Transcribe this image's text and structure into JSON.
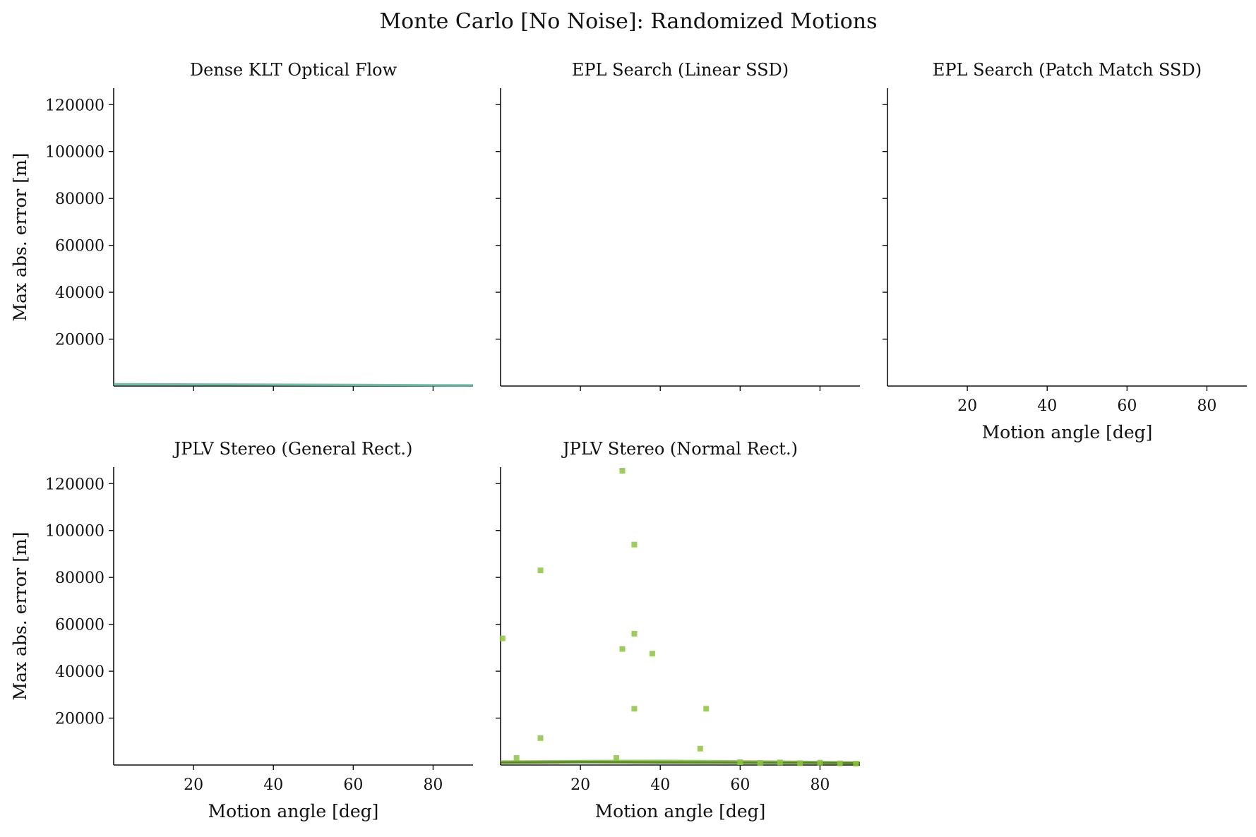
{
  "figure": {
    "suptitle": "Monte Carlo [No Noise]: Randomized Motions"
  },
  "colors": {
    "axis": "#111111",
    "klt": "#5fb8a0",
    "normal_rect": "#8cc63f",
    "normal_rect_dark": "#4a7a1c"
  },
  "chart_data": [
    {
      "type": "line",
      "title": "Dense KLT Optical Flow",
      "xlabel": "",
      "ylabel": "Max abs. error [m]",
      "xlim": [
        0,
        90
      ],
      "ylim": [
        0,
        127000
      ],
      "xticks": [
        20,
        40,
        60,
        80
      ],
      "xticklabels": [],
      "yticks": [
        20000,
        40000,
        60000,
        80000,
        100000,
        120000
      ],
      "yticklabels": [
        "20000",
        "40000",
        "60000",
        "80000",
        "100000",
        "120000"
      ],
      "series": [
        {
          "values": [
            [
              0,
              800
            ],
            [
              20,
              700
            ],
            [
              40,
              600
            ],
            [
              60,
              500
            ],
            [
              80,
              350
            ],
            [
              90,
              300
            ]
          ],
          "color": "#5fb8a0"
        }
      ],
      "grid": false
    },
    {
      "type": "line",
      "title": "EPL Search (Linear SSD)",
      "xlabel": "",
      "ylabel": "",
      "xlim": [
        0,
        90
      ],
      "ylim": [
        0,
        127000
      ],
      "xticks": [
        20,
        40,
        60,
        80
      ],
      "xticklabels": [],
      "yticks": [
        20000,
        40000,
        60000,
        80000,
        100000,
        120000
      ],
      "yticklabels": [],
      "series": [],
      "grid": false
    },
    {
      "type": "line",
      "title": "EPL Search (Patch Match SSD)",
      "xlabel": "Motion angle [deg]",
      "ylabel": "",
      "xlim": [
        0,
        90
      ],
      "ylim": [
        0,
        127000
      ],
      "xticks": [
        20,
        40,
        60,
        80
      ],
      "xticklabels": [
        "20",
        "40",
        "60",
        "80"
      ],
      "yticks": [
        20000,
        40000,
        60000,
        80000,
        100000,
        120000
      ],
      "yticklabels": [],
      "series": [],
      "grid": false
    },
    {
      "type": "line",
      "title": "JPLV Stereo (General Rect.)",
      "xlabel": "Motion angle [deg]",
      "ylabel": "Max abs. error [m]",
      "xlim": [
        0,
        90
      ],
      "ylim": [
        0,
        127000
      ],
      "xticks": [
        20,
        40,
        60,
        80
      ],
      "xticklabels": [
        "20",
        "40",
        "60",
        "80"
      ],
      "yticks": [
        20000,
        40000,
        60000,
        80000,
        100000,
        120000
      ],
      "yticklabels": [
        "20000",
        "40000",
        "60000",
        "80000",
        "100000",
        "120000"
      ],
      "series": [],
      "grid": false
    },
    {
      "type": "scatter",
      "title": "JPLV Stereo (Normal Rect.)",
      "xlabel": "Motion angle [deg]",
      "ylabel": "",
      "xlim": [
        0,
        90
      ],
      "ylim": [
        0,
        127000
      ],
      "xticks": [
        20,
        40,
        60,
        80
      ],
      "xticklabels": [
        "20",
        "40",
        "60",
        "80"
      ],
      "yticks": [
        20000,
        40000,
        60000,
        80000,
        100000,
        120000
      ],
      "yticklabels": [],
      "points": [
        [
          0.5,
          54000
        ],
        [
          4,
          3000
        ],
        [
          10,
          83000
        ],
        [
          10,
          11500
        ],
        [
          29,
          3000
        ],
        [
          30.5,
          125500
        ],
        [
          30.5,
          49500
        ],
        [
          33.5,
          94000
        ],
        [
          33.5,
          56000
        ],
        [
          33.5,
          24000
        ],
        [
          38,
          47500
        ],
        [
          50,
          7000
        ],
        [
          51.5,
          24000
        ],
        [
          60,
          1200
        ],
        [
          65,
          900
        ],
        [
          70,
          1100
        ],
        [
          75,
          800
        ],
        [
          80,
          1000
        ],
        [
          85,
          700
        ],
        [
          89,
          600
        ]
      ],
      "series": [
        {
          "values": [
            [
              0,
              1500
            ],
            [
              20,
              1700
            ],
            [
              40,
              1800
            ],
            [
              60,
              1600
            ],
            [
              80,
              1300
            ],
            [
              90,
              1100
            ]
          ],
          "color": "#8cc63f"
        },
        {
          "values": [
            [
              0,
              1000
            ],
            [
              20,
              1200
            ],
            [
              40,
              1100
            ],
            [
              60,
              1000
            ],
            [
              80,
              900
            ],
            [
              90,
              800
            ]
          ],
          "color": "#4a7a1c"
        }
      ],
      "grid": false
    }
  ]
}
